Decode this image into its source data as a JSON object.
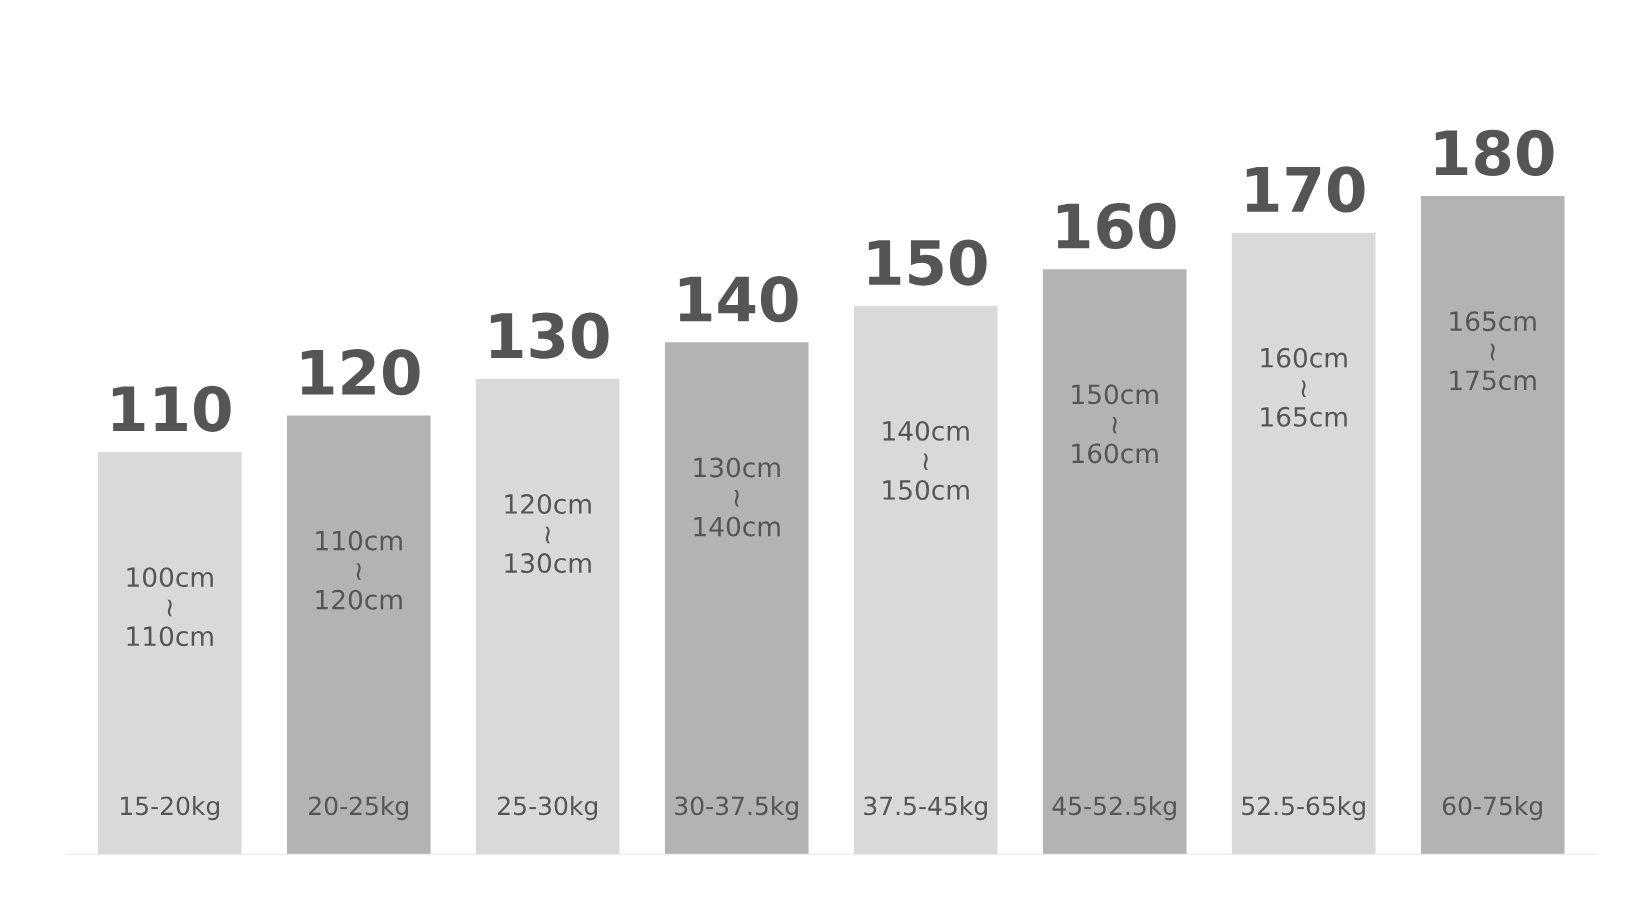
{
  "chart_data": {
    "type": "bar",
    "data_labels": true,
    "categories": [
      "15-20kg",
      "20-25kg",
      "25-30kg",
      "30-37.5kg",
      "37.5-45kg",
      "45-52.5kg",
      "52.5-65kg",
      "60-75kg"
    ],
    "values": [
      110,
      120,
      130,
      140,
      150,
      160,
      170,
      180
    ],
    "colors": [
      "#d9d9d9",
      "#b3b3b3",
      "#d9d9d9",
      "#b3b3b3",
      "#d9d9d9",
      "#b3b3b3",
      "#d9d9d9",
      "#b3b3b3"
    ],
    "annotations": [
      "100cm\n≀\n110cm",
      "110cm\n≀\n120cm",
      "120cm\n≀\n130cm",
      "130cm\n≀\n140cm",
      "140cm\n≀\n150cm",
      "150cm\n≀\n160cm",
      "160cm\n≀\n165cm",
      "165cm\n≀\n175cm"
    ],
    "grid": false,
    "legend": false
  }
}
